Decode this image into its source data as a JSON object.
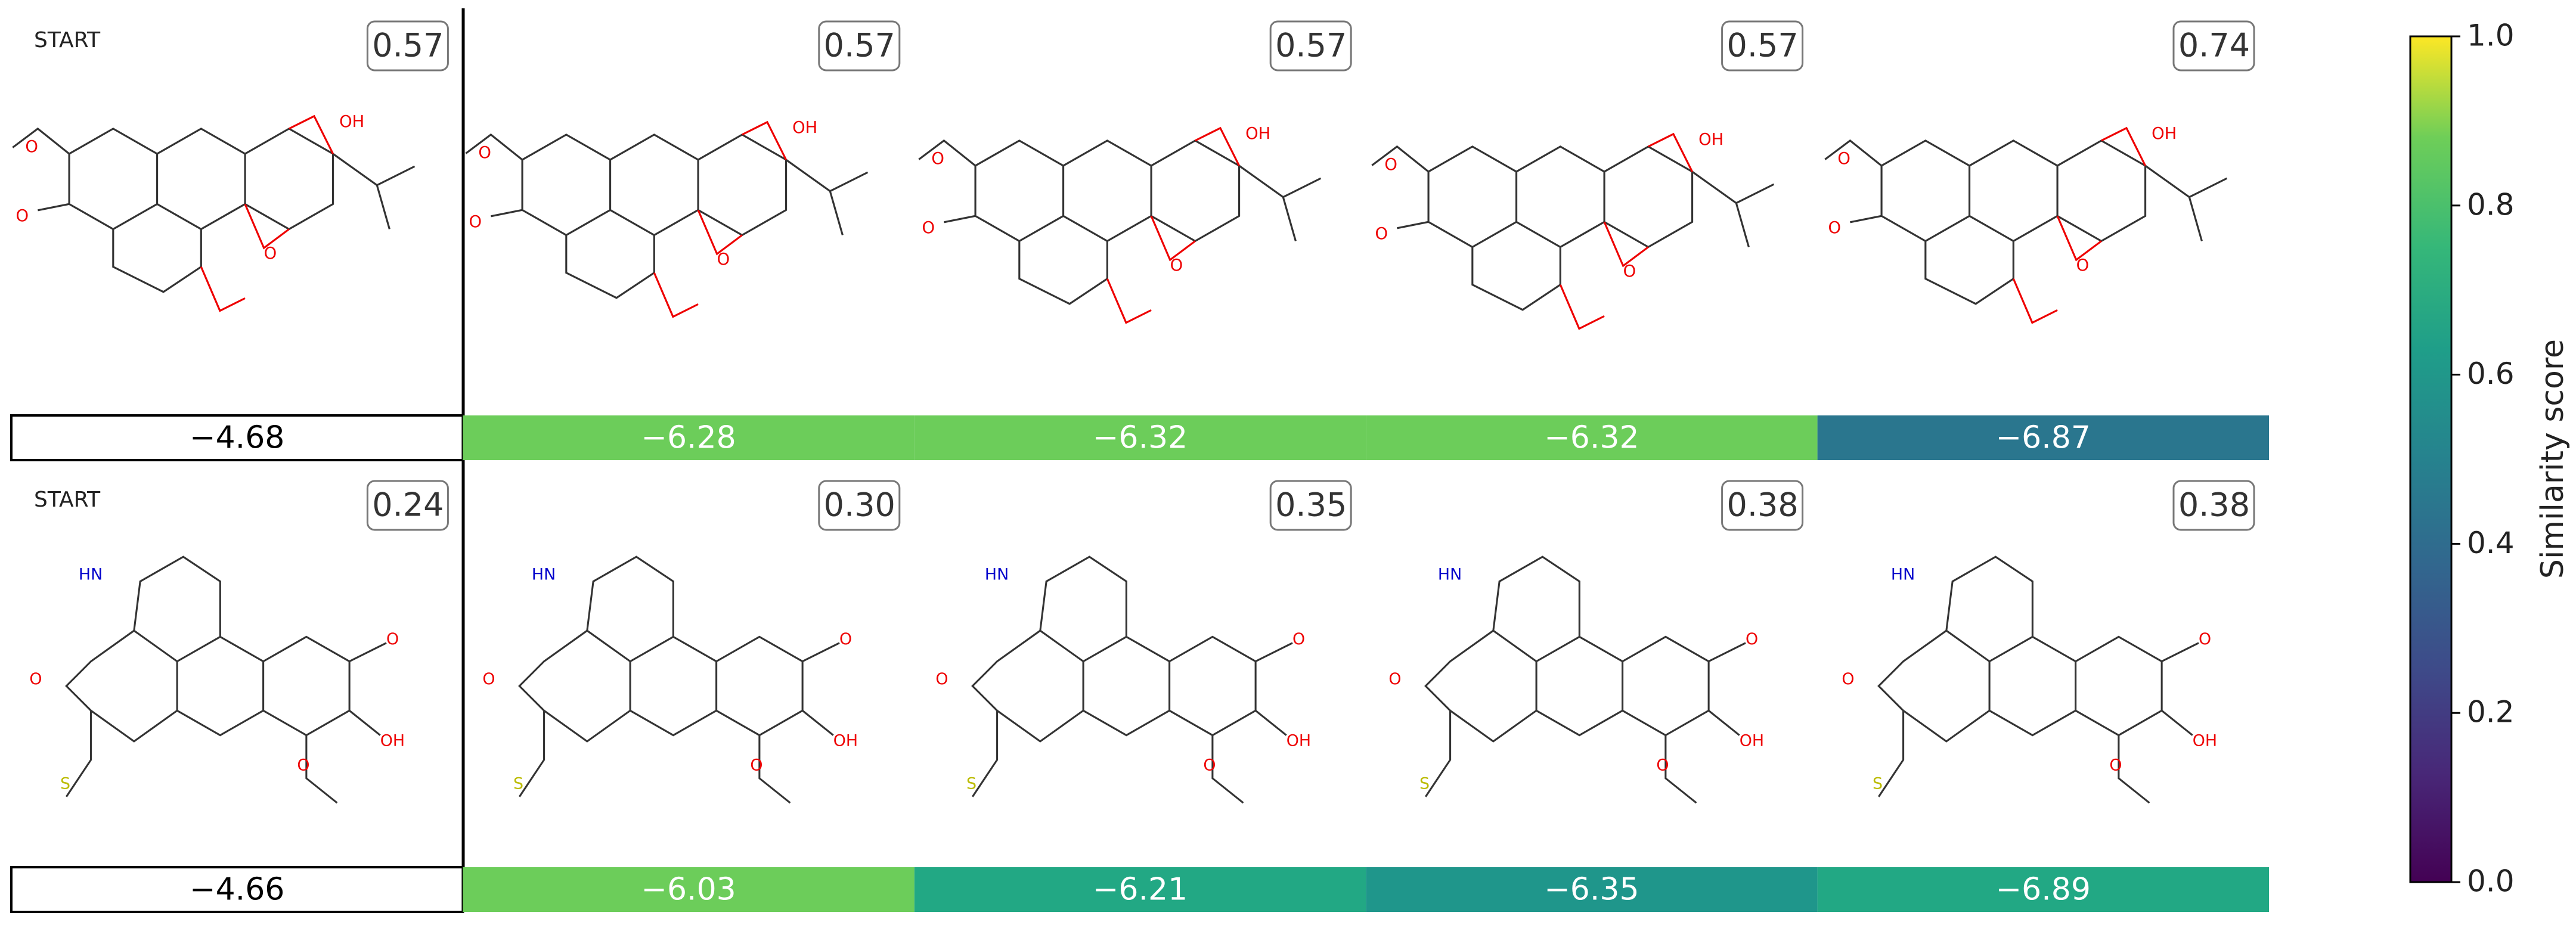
{
  "rows": [
    {
      "panels": [
        {
          "label": "START",
          "similarity": "0.57",
          "score": "−4.68",
          "color": "#ffffff"
        },
        {
          "similarity": "0.57",
          "score": "−6.28",
          "color": "#6ccd5a"
        },
        {
          "similarity": "0.57",
          "score": "−6.32",
          "color": "#6ccd5a"
        },
        {
          "similarity": "0.57",
          "score": "−6.32",
          "color": "#6ccd5a"
        },
        {
          "similarity": "0.74",
          "score": "−6.87",
          "color": "#2a768e"
        }
      ]
    },
    {
      "panels": [
        {
          "label": "START",
          "similarity": "0.24",
          "score": "−4.66",
          "color": "#ffffff"
        },
        {
          "similarity": "0.30",
          "score": "−6.03",
          "color": "#6ccd5a"
        },
        {
          "similarity": "0.35",
          "score": "−6.21",
          "color": "#22a884"
        },
        {
          "similarity": "0.38",
          "score": "−6.35",
          "color": "#1f968b"
        },
        {
          "similarity": "0.38",
          "score": "−6.89",
          "color": "#22a884"
        }
      ]
    }
  ],
  "colorbar": {
    "label": "Similarity score",
    "lim": [
      0,
      1
    ],
    "ticks": [
      {
        "value": 0,
        "label": "0.0"
      },
      {
        "value": 0.2,
        "label": "0.2"
      },
      {
        "value": 0.4,
        "label": "0.4"
      },
      {
        "value": 0.6,
        "label": "0.6"
      },
      {
        "value": 0.8,
        "label": "0.8"
      },
      {
        "value": 1,
        "label": "1.0"
      }
    ]
  }
}
